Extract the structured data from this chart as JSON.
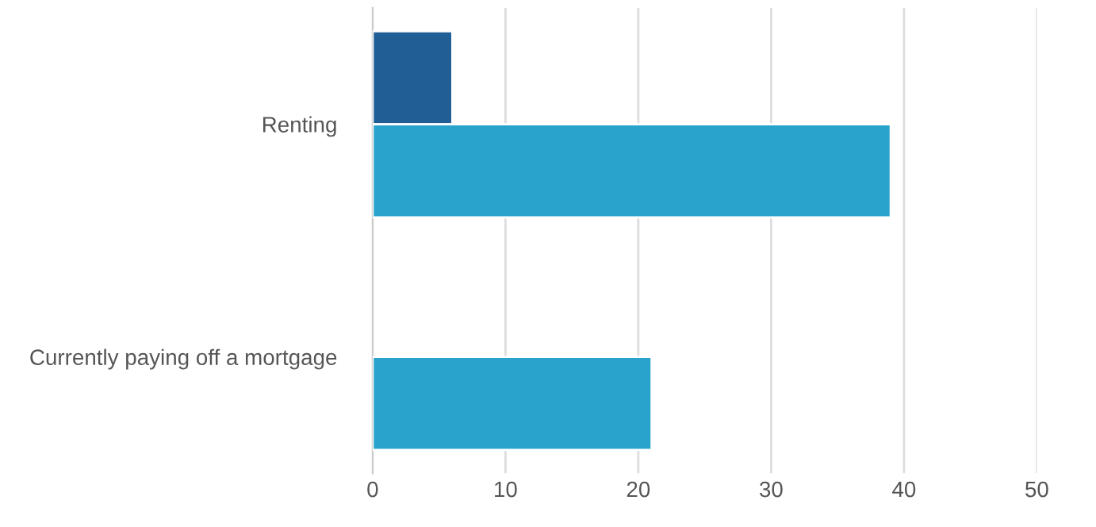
{
  "chart_data": {
    "type": "bar",
    "orientation": "horizontal",
    "categories": [
      "Renting",
      "Currently paying off a mortgage"
    ],
    "series": [
      {
        "color": "#215e96",
        "values": [
          6,
          null
        ]
      },
      {
        "color": "#29a2cc",
        "values": [
          39,
          21
        ]
      }
    ],
    "xlim": [
      0,
      50
    ],
    "xticks": [
      0,
      10,
      20,
      30,
      40,
      50
    ],
    "grid": "x"
  }
}
